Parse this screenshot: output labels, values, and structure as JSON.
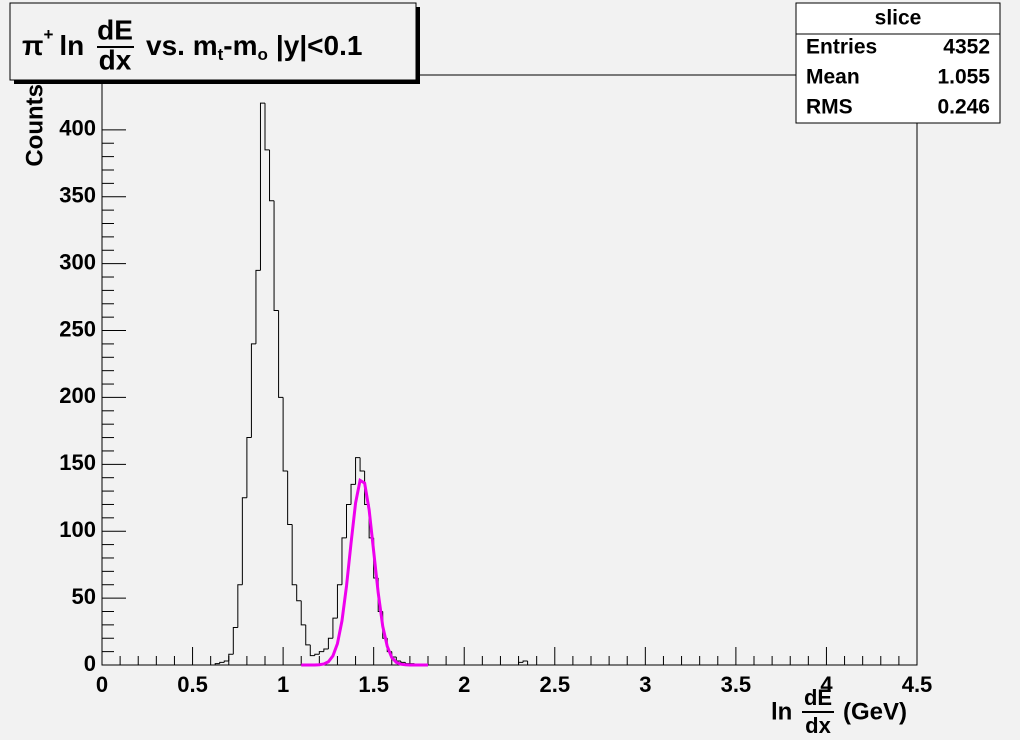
{
  "chart_data": {
    "type": "histogram",
    "title": {
      "prefix": "π",
      "prefix_sup": "+",
      "ln": "ln",
      "num": "dE",
      "den": "dx",
      "mid": "vs. m",
      "sub1": "t",
      "dash": "-m",
      "sub2": "o",
      "suffix": "|y|<0.1"
    },
    "x_label": {
      "ln": "ln",
      "num": "dE",
      "den": "dx",
      "unit": "(GeV)"
    },
    "y_label": "Counts",
    "color": "#000000",
    "bins": [
      0.6,
      0.625,
      0.65,
      0.675,
      0.7,
      0.725,
      0.75,
      0.775,
      0.8,
      0.825,
      0.85,
      0.875,
      0.9,
      0.925,
      0.95,
      0.975,
      1.0,
      1.025,
      1.05,
      1.075,
      1.1,
      1.125,
      1.15,
      1.175,
      1.2,
      1.225,
      1.25,
      1.275,
      1.3,
      1.325,
      1.35,
      1.375,
      1.4,
      1.425,
      1.45,
      1.475,
      1.5,
      1.525,
      1.55,
      1.575,
      1.6,
      1.625,
      1.65,
      1.675,
      1.7,
      1.725,
      1.75,
      1.775,
      1.8,
      1.825,
      1.85,
      1.875,
      1.9,
      1.925,
      1.95,
      1.975,
      2.0,
      2.025,
      2.05,
      2.075,
      2.1,
      2.125,
      2.15,
      2.175,
      2.2,
      2.225,
      2.25,
      2.275,
      2.3,
      2.325,
      2.35,
      2.375,
      2.4
    ],
    "counts": [
      0,
      1,
      2,
      3,
      8,
      28,
      60,
      125,
      170,
      240,
      295,
      420,
      385,
      347,
      265,
      200,
      145,
      105,
      60,
      48,
      30,
      15,
      7,
      8,
      10,
      12,
      20,
      35,
      60,
      95,
      120,
      135,
      155,
      145,
      120,
      95,
      65,
      40,
      20,
      10,
      6,
      3,
      2,
      1,
      1,
      0,
      0,
      0,
      0,
      0,
      0,
      0,
      0,
      0,
      0,
      0,
      0,
      0,
      0,
      0,
      0,
      0,
      0,
      0,
      0,
      0,
      0,
      0,
      2,
      3,
      0,
      0
    ],
    "fit": {
      "color": "#ee00ee",
      "x": [
        1.1,
        1.125,
        1.15,
        1.175,
        1.2,
        1.225,
        1.25,
        1.275,
        1.3,
        1.325,
        1.35,
        1.375,
        1.4,
        1.425,
        1.45,
        1.475,
        1.5,
        1.525,
        1.55,
        1.575,
        1.6,
        1.625,
        1.65,
        1.675,
        1.7,
        1.725,
        1.75,
        1.775,
        1.8
      ],
      "values": [
        0,
        0,
        0,
        0,
        0.2,
        0.8,
        2.4,
        6.8,
        16,
        33,
        59,
        91,
        121,
        138,
        136,
        116,
        85,
        54,
        29,
        14,
        5.6,
        2,
        0.6,
        0.2,
        0,
        0,
        0,
        0,
        0
      ]
    },
    "xlim": [
      0,
      4.5
    ],
    "ylim": [
      0,
      441
    ],
    "xticks": [
      0,
      0.5,
      1,
      1.5,
      2,
      2.5,
      3,
      3.5,
      4,
      4.5
    ],
    "yticks": [
      0,
      50,
      100,
      150,
      200,
      250,
      300,
      350,
      400
    ],
    "stats": {
      "title": "slice",
      "rows": [
        [
          "Entries",
          4352
        ],
        [
          "Mean",
          1.055
        ],
        [
          "RMS",
          0.246
        ]
      ]
    }
  }
}
